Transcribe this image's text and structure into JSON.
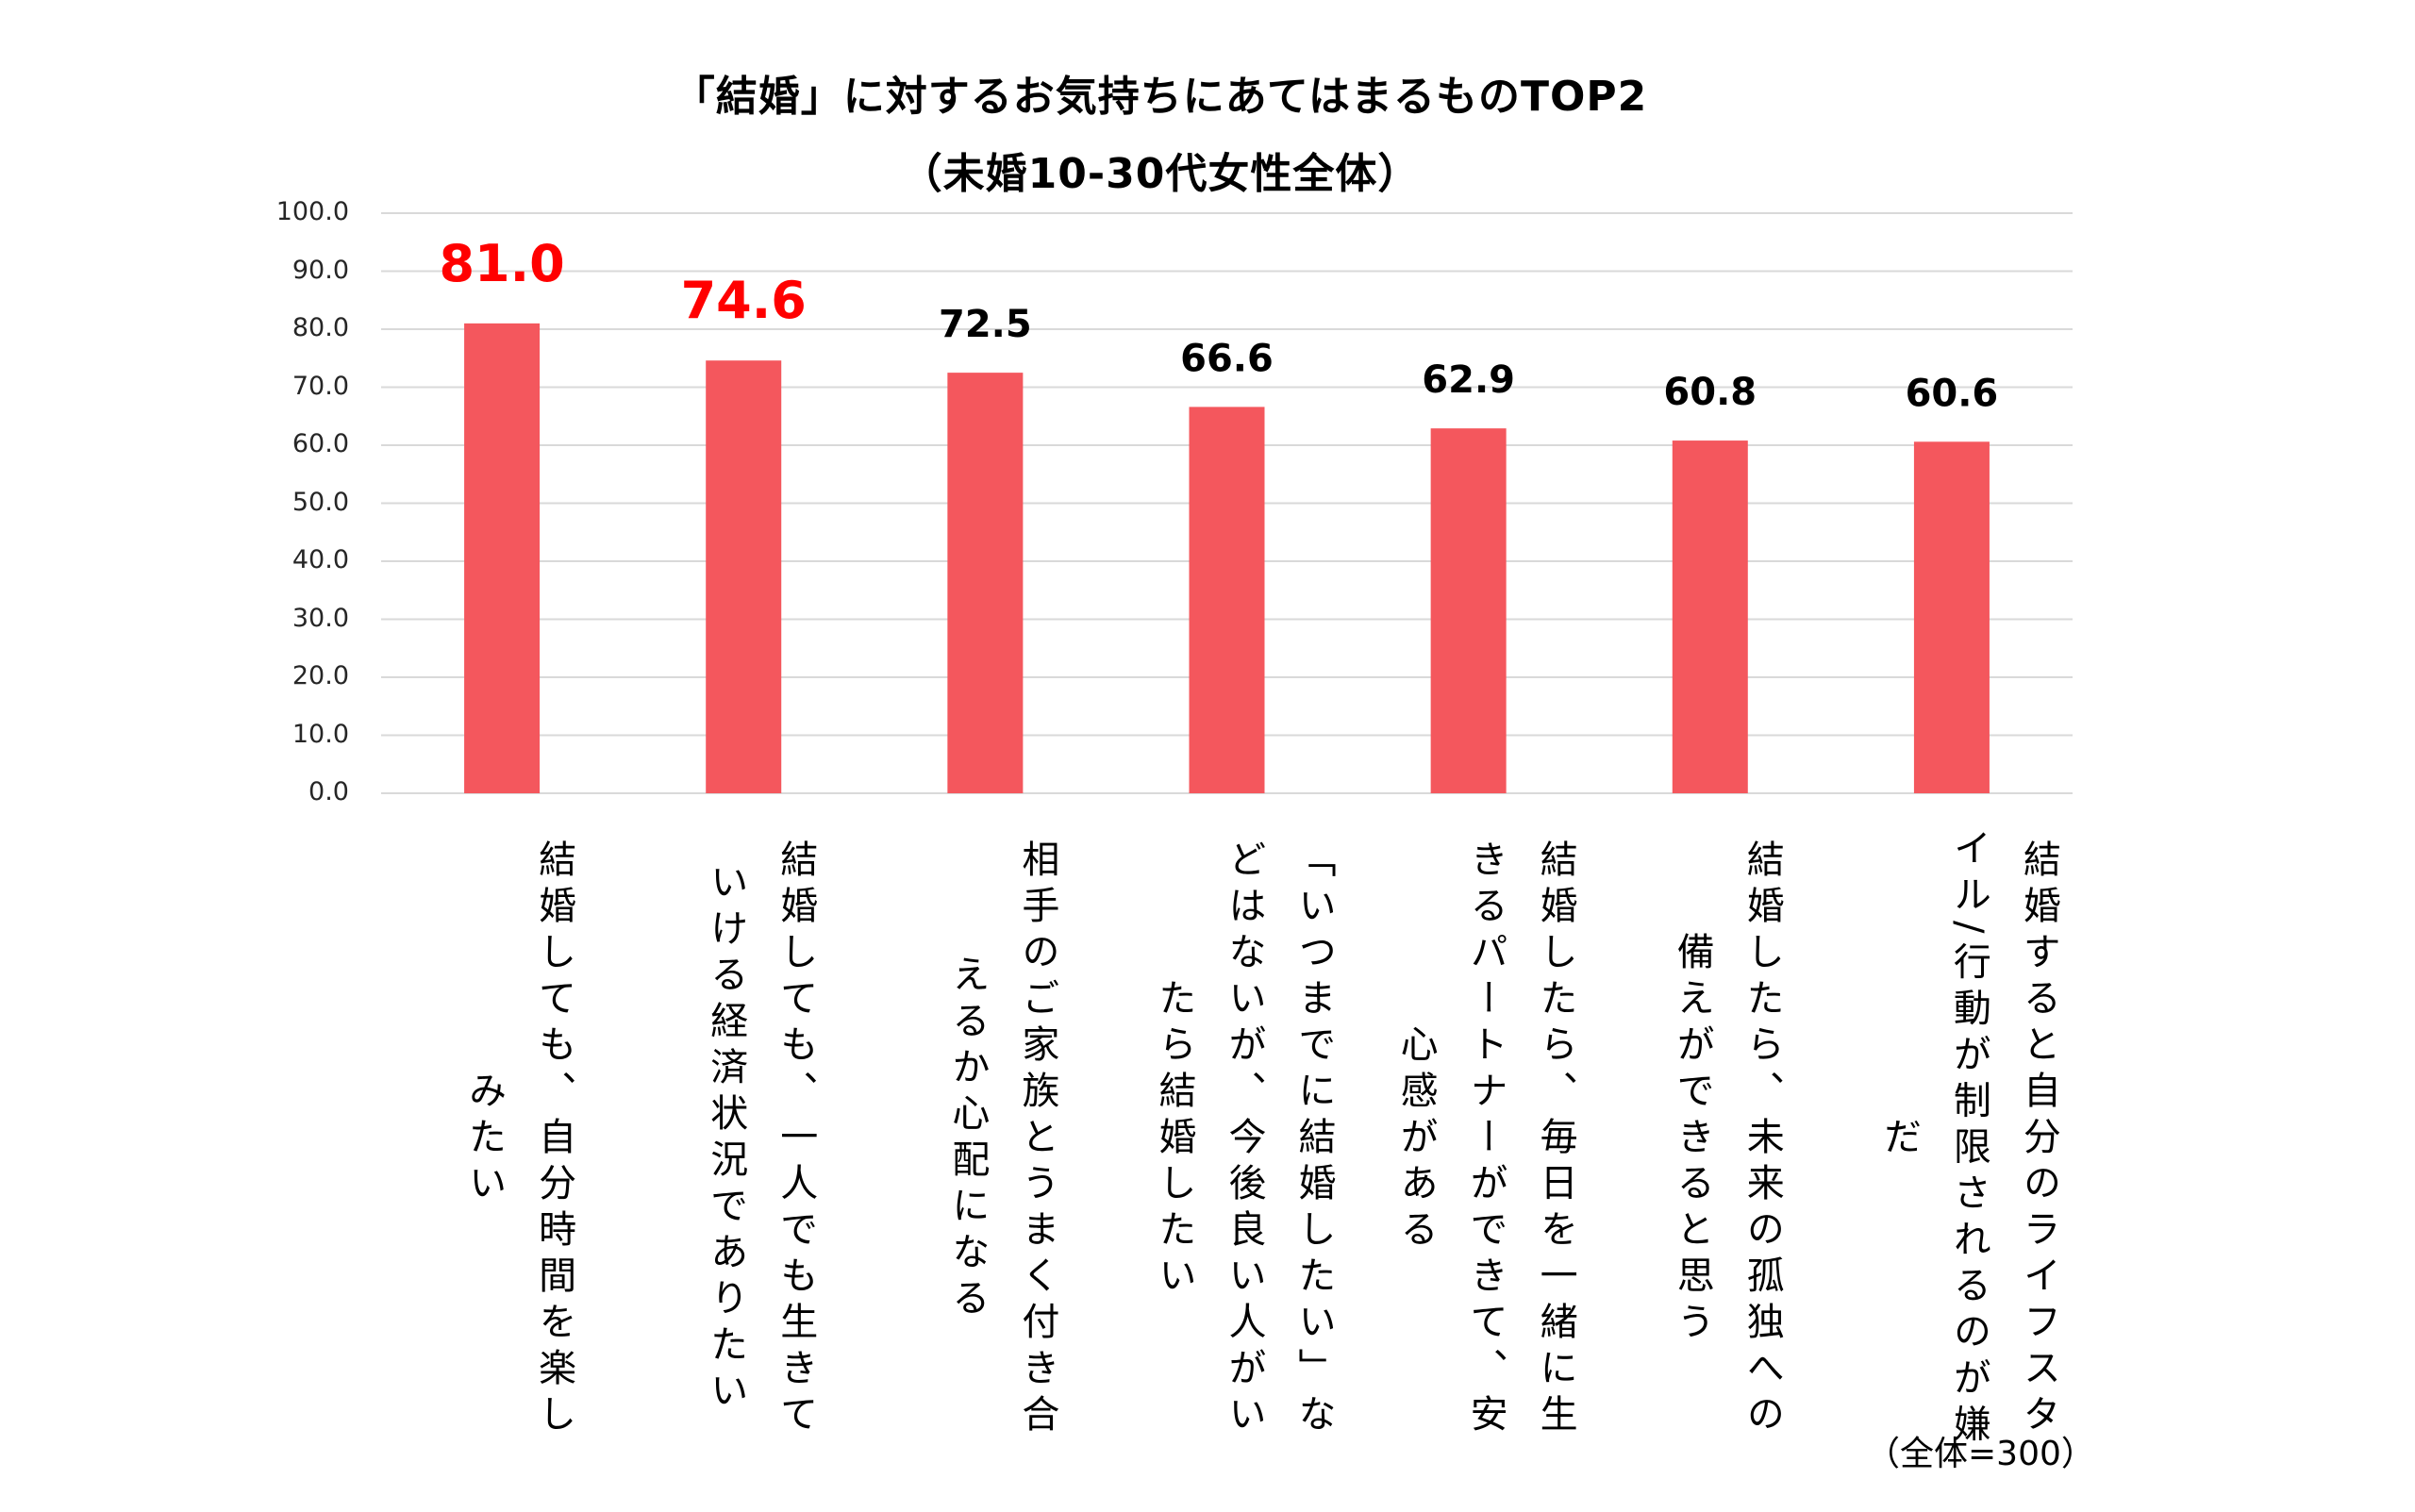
{
  "chart_data": {
    "type": "bar",
    "title": "「結婚」に対するお気持ちにあてはまるものTOP2",
    "subtitle": "（未婚10-30代女性全体）",
    "xlabel": "",
    "ylabel": "",
    "ylim": [
      0,
      100
    ],
    "yticks": [
      "0.0",
      "10.0",
      "20.0",
      "30.0",
      "40.0",
      "50.0",
      "60.0",
      "70.0",
      "80.0",
      "90.0",
      "100.0"
    ],
    "grid": true,
    "legend": "none",
    "categories": [
      "結婚しても、自分時間を楽しみたい",
      "結婚しても、一人でも生きていける経済状況でありたい",
      "相手のご家族とうまく付き合えるか心配になる",
      "「いつまでに結婚したい」などはないが、今後良い人がいたら結婚したい",
      "結婚したら、毎日を一緒に生きるパートナーができて、安心感がある",
      "結婚したら、未来の孤独への備えができると思う",
      "結婚すると自分のライフスタイル/行動が制限されるのが嫌だ"
    ],
    "category_lines": [
      [
        "結婚しても、自分時間を楽し",
        "みたい"
      ],
      [
        "結婚しても、一人でも生きて",
        "いける経済状況でありたい"
      ],
      [
        "相手のご家族とうまく付き合",
        "えるか心配になる"
      ],
      [
        "「いつまでに結婚したい」な",
        "どはないが、今後良い人がい",
        "たら結婚したい"
      ],
      [
        "結婚したら、毎日を一緒に生",
        "きるパートナーができて、安",
        "心感がある"
      ],
      [
        "結婚したら、未来の孤独への",
        "備えができると思う"
      ],
      [
        "結婚すると自分のライフスタ",
        "イル/行動が制限されるのが嫌",
        "だ"
      ]
    ],
    "values": [
      81.0,
      74.6,
      72.5,
      66.6,
      62.9,
      60.8,
      60.6
    ],
    "value_labels": [
      "81.0",
      "74.6",
      "72.5",
      "66.6",
      "62.9",
      "60.8",
      "60.6"
    ],
    "highlighted": [
      true,
      true,
      false,
      false,
      false,
      false,
      false
    ],
    "footnote": "（全体=300）"
  },
  "colors": {
    "bar": "#F4575D",
    "highlight_label": "#FF0000",
    "label": "#000000",
    "grid": "#D9D9D9"
  }
}
